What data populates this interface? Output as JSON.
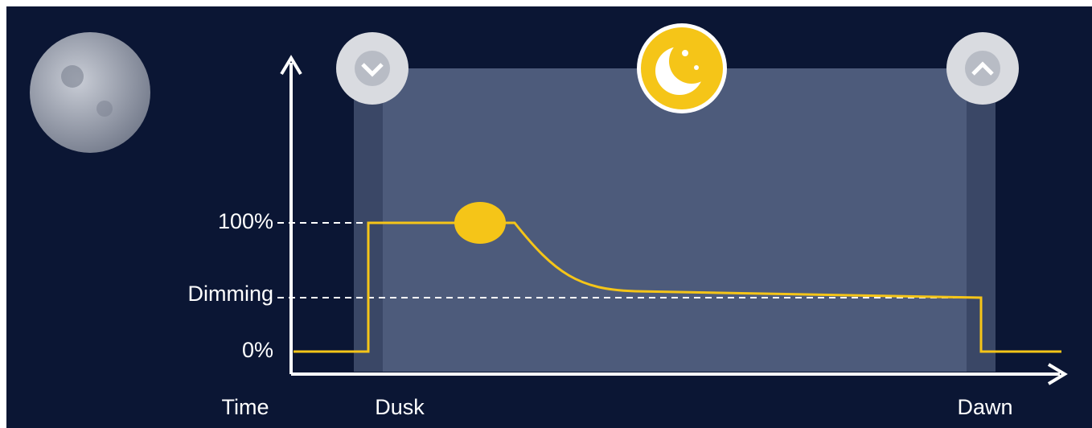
{
  "levels": {
    "full": "100%",
    "dimming": "Dimming",
    "off": "0%"
  },
  "time_axis": {
    "label": "Time",
    "dusk": "Dusk",
    "dawn": "Dawn"
  }
}
